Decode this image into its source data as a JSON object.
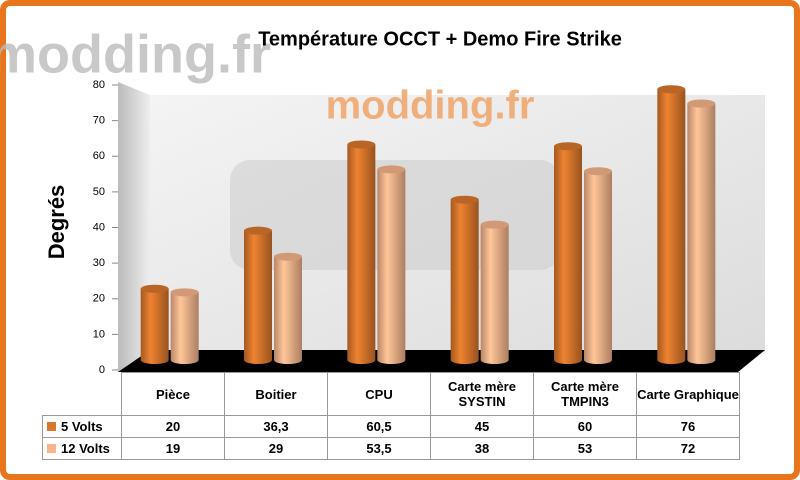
{
  "chart_data": {
    "type": "bar",
    "title": "Température OCCT + Demo Fire Strike",
    "watermark": "modding.fr",
    "y_label": "Degrés",
    "categories": [
      "Pièce",
      "Boitier",
      "CPU",
      "Carte mère SYSTIN",
      "Carte mère TMPIN3",
      "Carte Graphique"
    ],
    "series": [
      {
        "name": "5 Volts",
        "color": "#d9772c",
        "values": [
          20,
          36.3,
          60.5,
          45,
          60,
          76
        ],
        "value_labels": [
          "20",
          "36,3",
          "60,5",
          "45",
          "60",
          "76"
        ]
      },
      {
        "name": "12 Volts",
        "color": "#f6b48a",
        "values": [
          19,
          29,
          53.5,
          38,
          53,
          72
        ],
        "value_labels": [
          "19",
          "29",
          "53,5",
          "38",
          "53",
          "72"
        ]
      }
    ],
    "ylim": [
      0,
      80
    ],
    "yticks": [
      0,
      10,
      20,
      30,
      40,
      50,
      60,
      70,
      80
    ],
    "grid": false
  }
}
